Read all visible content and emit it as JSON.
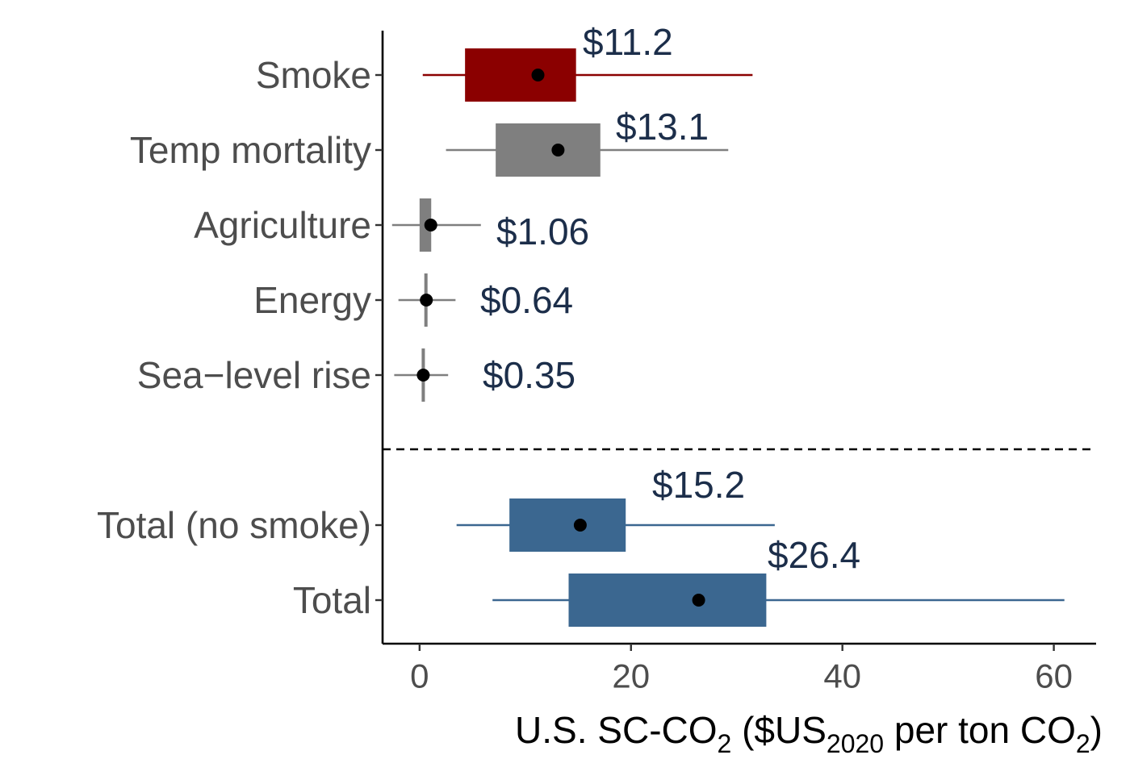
{
  "chart_data": {
    "type": "boxplot",
    "orientation": "horizontal",
    "title": "",
    "xlabel": {
      "parts": [
        {
          "text": "U.S. SC-CO",
          "sub": "2"
        },
        {
          "text": "  ($US",
          "sub": "2020"
        },
        {
          "text": " per ton CO",
          "sub": "2"
        },
        {
          "text": ")",
          "sub": ""
        }
      ]
    },
    "ylabel": "",
    "xlim": [
      -3.5,
      64
    ],
    "xticks": [
      0,
      20,
      40,
      60
    ],
    "xtick_labels": [
      "0",
      "20",
      "40",
      "60"
    ],
    "grid": false,
    "separator": {
      "style": "dashed",
      "between": [
        "Sea−level rise",
        "Total (no smoke)"
      ]
    },
    "categories": [
      {
        "name": "Smoke",
        "label": "$11.2",
        "point": 11.2,
        "whisker": [
          0.3,
          31.5
        ],
        "box": [
          4.3,
          14.8
        ],
        "color": "#8b0000",
        "line_color": "#8b0000"
      },
      {
        "name": "Temp mortality",
        "label": "$13.1",
        "point": 13.1,
        "whisker": [
          2.5,
          29.2
        ],
        "box": [
          7.2,
          17.1
        ],
        "color": "#7f7f7f",
        "line_color": "#7f7f7f"
      },
      {
        "name": "Agriculture",
        "label": "$1.06",
        "point": 1.06,
        "whisker": [
          -2.6,
          5.8
        ],
        "box": [
          0.0,
          1.1
        ],
        "color": "#7f7f7f",
        "line_color": "#7f7f7f"
      },
      {
        "name": "Energy",
        "label": "$0.64",
        "point": 0.64,
        "whisker": [
          -2.0,
          3.4
        ],
        "box": [
          0.45,
          0.75
        ],
        "color": "#7f7f7f",
        "line_color": "#7f7f7f"
      },
      {
        "name": "Sea−level rise",
        "label": "$0.35",
        "point": 0.35,
        "whisker": [
          -2.4,
          2.7
        ],
        "box": [
          0.3,
          0.4
        ],
        "color": "#7f7f7f",
        "line_color": "#7f7f7f"
      },
      {
        "name": "Total (no smoke)",
        "label": "$15.2",
        "point": 15.2,
        "whisker": [
          3.5,
          33.6
        ],
        "box": [
          8.5,
          19.5
        ],
        "color": "#3b6790",
        "line_color": "#3b6790"
      },
      {
        "name": "Total",
        "label": "$26.4",
        "point": 26.4,
        "whisker": [
          6.9,
          61.0
        ],
        "box": [
          14.1,
          32.8
        ],
        "color": "#3b6790",
        "line_color": "#3b6790"
      }
    ]
  }
}
